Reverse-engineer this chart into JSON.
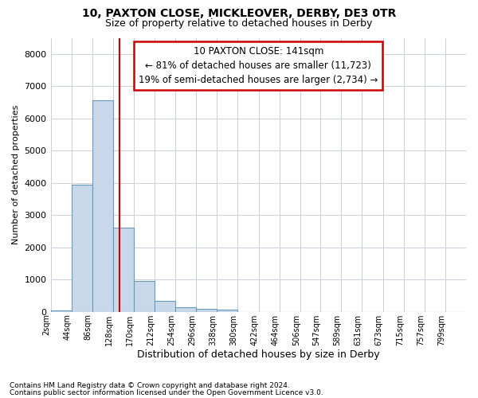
{
  "title1": "10, PAXTON CLOSE, MICKLEOVER, DERBY, DE3 0TR",
  "title2": "Size of property relative to detached houses in Derby",
  "xlabel": "Distribution of detached houses by size in Derby",
  "ylabel": "Number of detached properties",
  "bar_color": "#c8d8ea",
  "bar_edgecolor": "#6699bb",
  "vline_color": "#cc0000",
  "vline_value": 141,
  "annotation_line1": "10 PAXTON CLOSE: 141sqm",
  "annotation_line2": "← 81% of detached houses are smaller (11,723)",
  "annotation_line3": "19% of semi-detached houses are larger (2,734) →",
  "footer1": "Contains HM Land Registry data © Crown copyright and database right 2024.",
  "footer2": "Contains public sector information licensed under the Open Government Licence v3.0.",
  "bin_edges": [
    2,
    44,
    86,
    128,
    170,
    212,
    254,
    296,
    338,
    380,
    422,
    464,
    506,
    547,
    589,
    631,
    673,
    715,
    757,
    799,
    841
  ],
  "bar_heights": [
    50,
    3950,
    6550,
    2600,
    950,
    330,
    130,
    100,
    70,
    0,
    0,
    0,
    0,
    0,
    0,
    0,
    0,
    0,
    0,
    0
  ],
  "ylim": [
    0,
    8500
  ],
  "yticks": [
    0,
    1000,
    2000,
    3000,
    4000,
    5000,
    6000,
    7000,
    8000
  ],
  "background_color": "#ffffff",
  "plot_bg_color": "#ffffff",
  "grid_color": "#c8d0dc"
}
